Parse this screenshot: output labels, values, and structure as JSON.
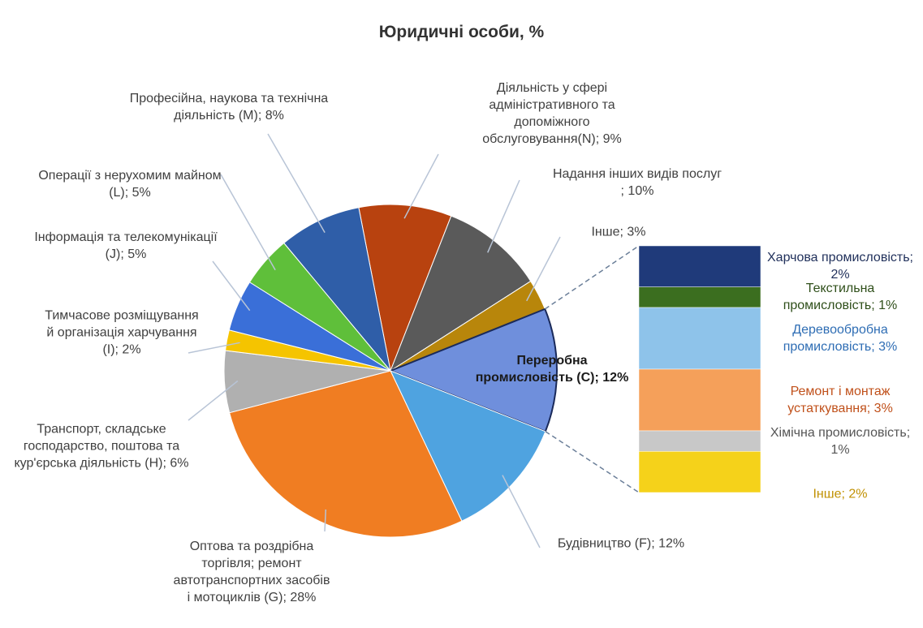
{
  "chart_data": [
    {
      "type": "pie",
      "title": "Юридичні особи, %",
      "values": [
        9,
        10,
        3,
        12,
        12,
        28,
        6,
        2,
        5,
        5,
        8
      ],
      "value_labels": [
        "Діяльність у сфері адміністративного та допоміжного обслуговування(N); 9%",
        "Надання інших видів послуг ; 10%",
        "Інше; 3%",
        "Переробна промисловість (C); 12%",
        "Будівництво (F); 12%",
        "Оптова та роздрібна торгівля; ремонт автотранспортних засобів і мотоциклів (G); 28%",
        "Транспорт, складське господарство, поштова та кур'єрська діяльність (H); 6%",
        "Тимчасове розміщування й організація харчування (I); 2%",
        "Інформація та телекомунікації (J); 5%",
        "Операції з нерухомим майном (L); 5%",
        "Професійна, наукова та технічна діяльність (M); 8%"
      ],
      "colors": [
        "#b8420f",
        "#5a5a5a",
        "#b8860b",
        "#6f8fdc",
        "#4fa3e0",
        "#f07d22",
        "#b0b0b0",
        "#f5c400",
        "#3a6fd8",
        "#5fbf3a",
        "#2f5ea8"
      ]
    },
    {
      "type": "stacked_bar",
      "values": [
        2,
        1,
        3,
        3,
        1,
        2
      ],
      "value_labels": [
        "Харчова промисловість; 2%",
        "Текстильна промисловість; 1%",
        "Деревообробна промисловість; 3%",
        "Ремонт і монтаж устаткування; 3%",
        "Хімічна промисловість; 1%",
        "Інше; 2%"
      ],
      "colors": [
        "#1f3a7a",
        "#3b6e1f",
        "#8ec3ea",
        "#f5a05a",
        "#c8c8c8",
        "#f5d21a"
      ],
      "label_colors": [
        "#1f2f5a",
        "#2f4f1a",
        "#2e6db4",
        "#c0501a",
        "#555555",
        "#c09000"
      ]
    }
  ]
}
